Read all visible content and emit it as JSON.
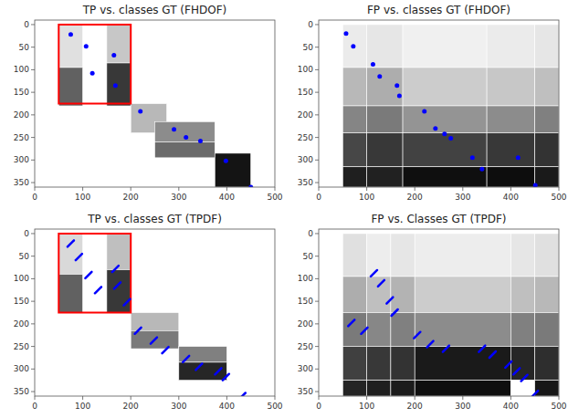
{
  "chart_data": [
    {
      "type": "scatter",
      "title": "TP vs. classes GT (FHDOF)",
      "xlim": [
        0,
        500
      ],
      "ylim": [
        360,
        -10
      ],
      "xticks": [
        0,
        100,
        200,
        300,
        400,
        500
      ],
      "yticks": [
        0,
        50,
        100,
        150,
        200,
        250,
        300,
        350
      ],
      "blocks": [
        {
          "x": 50,
          "y": 0,
          "w": 50,
          "h": 95,
          "gray": 0.88
        },
        {
          "x": 50,
          "y": 95,
          "w": 50,
          "h": 85,
          "gray": 0.38
        },
        {
          "x": 150,
          "y": 0,
          "w": 50,
          "h": 85,
          "gray": 0.78
        },
        {
          "x": 150,
          "y": 85,
          "w": 50,
          "h": 95,
          "gray": 0.22
        },
        {
          "x": 200,
          "y": 175,
          "w": 75,
          "h": 65,
          "gray": 0.72
        },
        {
          "x": 250,
          "y": 215,
          "w": 125,
          "h": 45,
          "gray": 0.55
        },
        {
          "x": 250,
          "y": 260,
          "w": 125,
          "h": 35,
          "gray": 0.42
        },
        {
          "x": 375,
          "y": 285,
          "w": 75,
          "h": 75,
          "gray": 0.08
        }
      ],
      "series": [
        {
          "color": "blue",
          "marker": "dot",
          "x": [
            75,
            107,
            120,
            165,
            168,
            220,
            290,
            315,
            345,
            398,
            450
          ],
          "values": [
            22,
            48,
            108,
            68,
            135,
            192,
            232,
            250,
            258,
            302,
            360
          ]
        }
      ],
      "box": {
        "x": 50,
        "y": 0,
        "w": 150,
        "h": 175,
        "color": "red"
      }
    },
    {
      "type": "scatter",
      "title": "FP vs. classes GT (FHDOF)",
      "xlim": [
        0,
        500
      ],
      "ylim": [
        360,
        -10
      ],
      "xticks": [
        0,
        100,
        200,
        300,
        400,
        500
      ],
      "yticks": [
        0,
        50,
        100,
        150,
        200,
        250,
        300,
        350
      ],
      "blocks": [
        {
          "x": 50,
          "y": 0,
          "w": 50,
          "h": 95,
          "gray": 0.92
        },
        {
          "x": 50,
          "y": 95,
          "w": 50,
          "h": 85,
          "gray": 0.72
        },
        {
          "x": 50,
          "y": 180,
          "w": 50,
          "h": 60,
          "gray": 0.52
        },
        {
          "x": 50,
          "y": 240,
          "w": 50,
          "h": 75,
          "gray": 0.28
        },
        {
          "x": 50,
          "y": 315,
          "w": 50,
          "h": 45,
          "gray": 0.12
        },
        {
          "x": 100,
          "y": 0,
          "w": 75,
          "h": 95,
          "gray": 0.9
        },
        {
          "x": 100,
          "y": 95,
          "w": 75,
          "h": 85,
          "gray": 0.68
        },
        {
          "x": 100,
          "y": 180,
          "w": 75,
          "h": 60,
          "gray": 0.48
        },
        {
          "x": 100,
          "y": 240,
          "w": 75,
          "h": 75,
          "gray": 0.22
        },
        {
          "x": 100,
          "y": 315,
          "w": 75,
          "h": 45,
          "gray": 0.13
        },
        {
          "x": 175,
          "y": 0,
          "w": 175,
          "h": 95,
          "gray": 0.94
        },
        {
          "x": 175,
          "y": 95,
          "w": 175,
          "h": 85,
          "gray": 0.8
        },
        {
          "x": 175,
          "y": 180,
          "w": 175,
          "h": 60,
          "gray": 0.58
        },
        {
          "x": 175,
          "y": 240,
          "w": 175,
          "h": 75,
          "gray": 0.26
        },
        {
          "x": 175,
          "y": 315,
          "w": 175,
          "h": 45,
          "gray": 0.06
        },
        {
          "x": 350,
          "y": 0,
          "w": 100,
          "h": 95,
          "gray": 0.92
        },
        {
          "x": 350,
          "y": 95,
          "w": 100,
          "h": 85,
          "gray": 0.78
        },
        {
          "x": 350,
          "y": 180,
          "w": 100,
          "h": 60,
          "gray": 0.55
        },
        {
          "x": 350,
          "y": 240,
          "w": 100,
          "h": 75,
          "gray": 0.22
        },
        {
          "x": 350,
          "y": 315,
          "w": 100,
          "h": 45,
          "gray": 0.05
        },
        {
          "x": 450,
          "y": 0,
          "w": 50,
          "h": 95,
          "gray": 0.9
        },
        {
          "x": 450,
          "y": 95,
          "w": 50,
          "h": 85,
          "gray": 0.75
        },
        {
          "x": 450,
          "y": 180,
          "w": 50,
          "h": 60,
          "gray": 0.5
        },
        {
          "x": 450,
          "y": 240,
          "w": 50,
          "h": 75,
          "gray": 0.2
        },
        {
          "x": 450,
          "y": 315,
          "w": 50,
          "h": 45,
          "gray": 0.1
        }
      ],
      "series": [
        {
          "color": "blue",
          "marker": "dot",
          "x": [
            57,
            72,
            113,
            127,
            163,
            168,
            220,
            243,
            262,
            275,
            320,
            340,
            415,
            451
          ],
          "values": [
            20,
            48,
            88,
            115,
            135,
            158,
            192,
            230,
            242,
            252,
            295,
            320,
            295,
            356
          ]
        }
      ]
    },
    {
      "type": "scatter",
      "title": "TP vs. classes GT (TPDF)",
      "xlim": [
        0,
        500
      ],
      "ylim": [
        360,
        -10
      ],
      "xticks": [
        0,
        100,
        200,
        300,
        400,
        500
      ],
      "yticks": [
        0,
        50,
        100,
        150,
        200,
        250,
        300,
        350
      ],
      "blocks": [
        {
          "x": 50,
          "y": 0,
          "w": 50,
          "h": 90,
          "gray": 0.85
        },
        {
          "x": 50,
          "y": 90,
          "w": 50,
          "h": 85,
          "gray": 0.38
        },
        {
          "x": 150,
          "y": 0,
          "w": 50,
          "h": 80,
          "gray": 0.75
        },
        {
          "x": 150,
          "y": 80,
          "w": 50,
          "h": 95,
          "gray": 0.22
        },
        {
          "x": 200,
          "y": 175,
          "w": 100,
          "h": 40,
          "gray": 0.72
        },
        {
          "x": 200,
          "y": 215,
          "w": 100,
          "h": 40,
          "gray": 0.48
        },
        {
          "x": 300,
          "y": 250,
          "w": 100,
          "h": 35,
          "gray": 0.5
        },
        {
          "x": 300,
          "y": 285,
          "w": 100,
          "h": 40,
          "gray": 0.15
        }
      ],
      "series": [
        {
          "color": "blue",
          "marker": "dash",
          "x": [
            75,
            92,
            112,
            132,
            168,
            172,
            192,
            215,
            248,
            272,
            315,
            342,
            382,
            398,
            432
          ],
          "values": [
            22,
            52,
            92,
            125,
            78,
            115,
            152,
            215,
            237,
            258,
            278,
            295,
            305,
            318,
            360
          ]
        }
      ],
      "box": {
        "x": 50,
        "y": 0,
        "w": 150,
        "h": 175,
        "color": "red"
      }
    },
    {
      "type": "scatter",
      "title": "FP vs. Classes GT (TPDF)",
      "xlim": [
        0,
        500
      ],
      "ylim": [
        360,
        -10
      ],
      "xticks": [
        0,
        100,
        200,
        300,
        400,
        500
      ],
      "yticks": [
        0,
        50,
        100,
        150,
        200,
        250,
        300,
        350
      ],
      "blocks": [
        {
          "x": 50,
          "y": 0,
          "w": 50,
          "h": 95,
          "gray": 0.88
        },
        {
          "x": 50,
          "y": 95,
          "w": 50,
          "h": 80,
          "gray": 0.68
        },
        {
          "x": 50,
          "y": 175,
          "w": 50,
          "h": 75,
          "gray": 0.48
        },
        {
          "x": 50,
          "y": 250,
          "w": 50,
          "h": 75,
          "gray": 0.25
        },
        {
          "x": 50,
          "y": 325,
          "w": 50,
          "h": 35,
          "gray": 0.14
        },
        {
          "x": 100,
          "y": 0,
          "w": 50,
          "h": 95,
          "gray": 0.93
        },
        {
          "x": 100,
          "y": 95,
          "w": 50,
          "h": 80,
          "gray": 0.75
        },
        {
          "x": 100,
          "y": 175,
          "w": 50,
          "h": 75,
          "gray": 0.53
        },
        {
          "x": 100,
          "y": 250,
          "w": 50,
          "h": 75,
          "gray": 0.22
        },
        {
          "x": 100,
          "y": 325,
          "w": 50,
          "h": 35,
          "gray": 0.12
        },
        {
          "x": 150,
          "y": 0,
          "w": 50,
          "h": 95,
          "gray": 0.9
        },
        {
          "x": 150,
          "y": 95,
          "w": 50,
          "h": 80,
          "gray": 0.7
        },
        {
          "x": 150,
          "y": 175,
          "w": 50,
          "h": 75,
          "gray": 0.5
        },
        {
          "x": 150,
          "y": 250,
          "w": 50,
          "h": 75,
          "gray": 0.2
        },
        {
          "x": 150,
          "y": 325,
          "w": 50,
          "h": 35,
          "gray": 0.11
        },
        {
          "x": 200,
          "y": 0,
          "w": 200,
          "h": 95,
          "gray": 0.93
        },
        {
          "x": 200,
          "y": 95,
          "w": 200,
          "h": 80,
          "gray": 0.8
        },
        {
          "x": 200,
          "y": 175,
          "w": 200,
          "h": 75,
          "gray": 0.55
        },
        {
          "x": 200,
          "y": 250,
          "w": 200,
          "h": 75,
          "gray": 0.1
        },
        {
          "x": 200,
          "y": 325,
          "w": 200,
          "h": 35,
          "gray": 0.06
        },
        {
          "x": 400,
          "y": 0,
          "w": 50,
          "h": 95,
          "gray": 0.9
        },
        {
          "x": 400,
          "y": 95,
          "w": 50,
          "h": 80,
          "gray": 0.75
        },
        {
          "x": 400,
          "y": 175,
          "w": 50,
          "h": 75,
          "gray": 0.5
        },
        {
          "x": 400,
          "y": 250,
          "w": 50,
          "h": 75,
          "gray": 0.15
        },
        {
          "x": 400,
          "y": 325,
          "w": 50,
          "h": 35,
          "gray": 1.0
        },
        {
          "x": 450,
          "y": 0,
          "w": 50,
          "h": 95,
          "gray": 0.88
        },
        {
          "x": 450,
          "y": 95,
          "w": 50,
          "h": 80,
          "gray": 0.72
        },
        {
          "x": 450,
          "y": 175,
          "w": 50,
          "h": 75,
          "gray": 0.48
        },
        {
          "x": 450,
          "y": 250,
          "w": 50,
          "h": 75,
          "gray": 0.18
        },
        {
          "x": 450,
          "y": 325,
          "w": 50,
          "h": 35,
          "gray": 0.09
        }
      ],
      "series": [
        {
          "color": "blue",
          "marker": "dash",
          "x": [
            68,
            95,
            115,
            130,
            148,
            158,
            205,
            232,
            265,
            340,
            362,
            395,
            412,
            428,
            450
          ],
          "values": [
            198,
            215,
            88,
            110,
            148,
            175,
            225,
            245,
            255,
            255,
            268,
            290,
            305,
            320,
            355
          ]
        }
      ]
    }
  ]
}
